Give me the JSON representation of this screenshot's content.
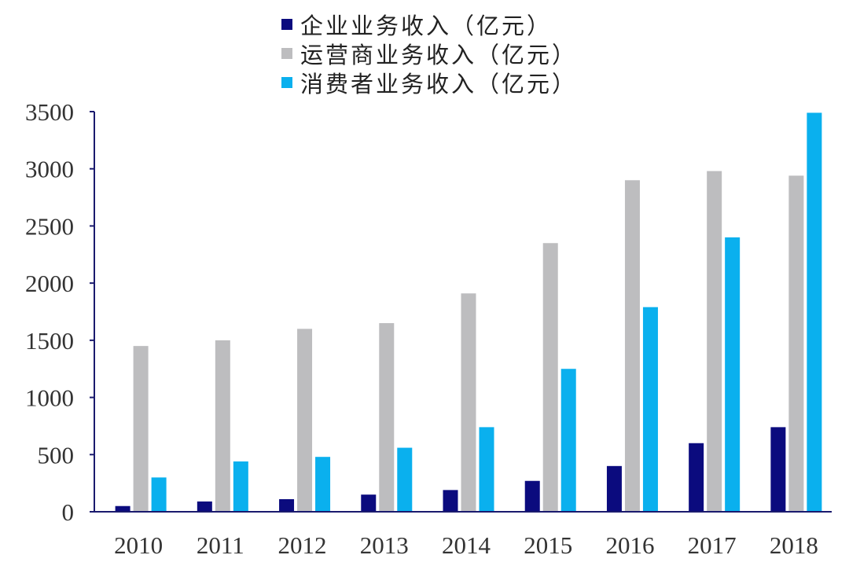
{
  "chart_data": {
    "type": "bar",
    "categories": [
      "2010",
      "2011",
      "2012",
      "2013",
      "2014",
      "2015",
      "2016",
      "2017",
      "2018"
    ],
    "series": [
      {
        "name": "企业业务收入（亿元）",
        "color": "#0b0b7e",
        "values": [
          50,
          90,
          110,
          150,
          190,
          270,
          400,
          600,
          740
        ]
      },
      {
        "name": "运营商业务收入（亿元）",
        "color": "#bdbdbf",
        "values": [
          1450,
          1500,
          1600,
          1650,
          1910,
          2350,
          2900,
          2980,
          2940
        ]
      },
      {
        "name": "消费者业务收入（亿元）",
        "color": "#0ab0ee",
        "values": [
          300,
          440,
          480,
          560,
          740,
          1250,
          1790,
          2400,
          3490
        ]
      }
    ],
    "ylim": [
      0,
      3500
    ],
    "yticks": [
      0,
      500,
      1000,
      1500,
      2000,
      2500,
      3000,
      3500
    ],
    "grid": false,
    "legend_position": "top-center",
    "axis_color": "#1a1a6e"
  }
}
